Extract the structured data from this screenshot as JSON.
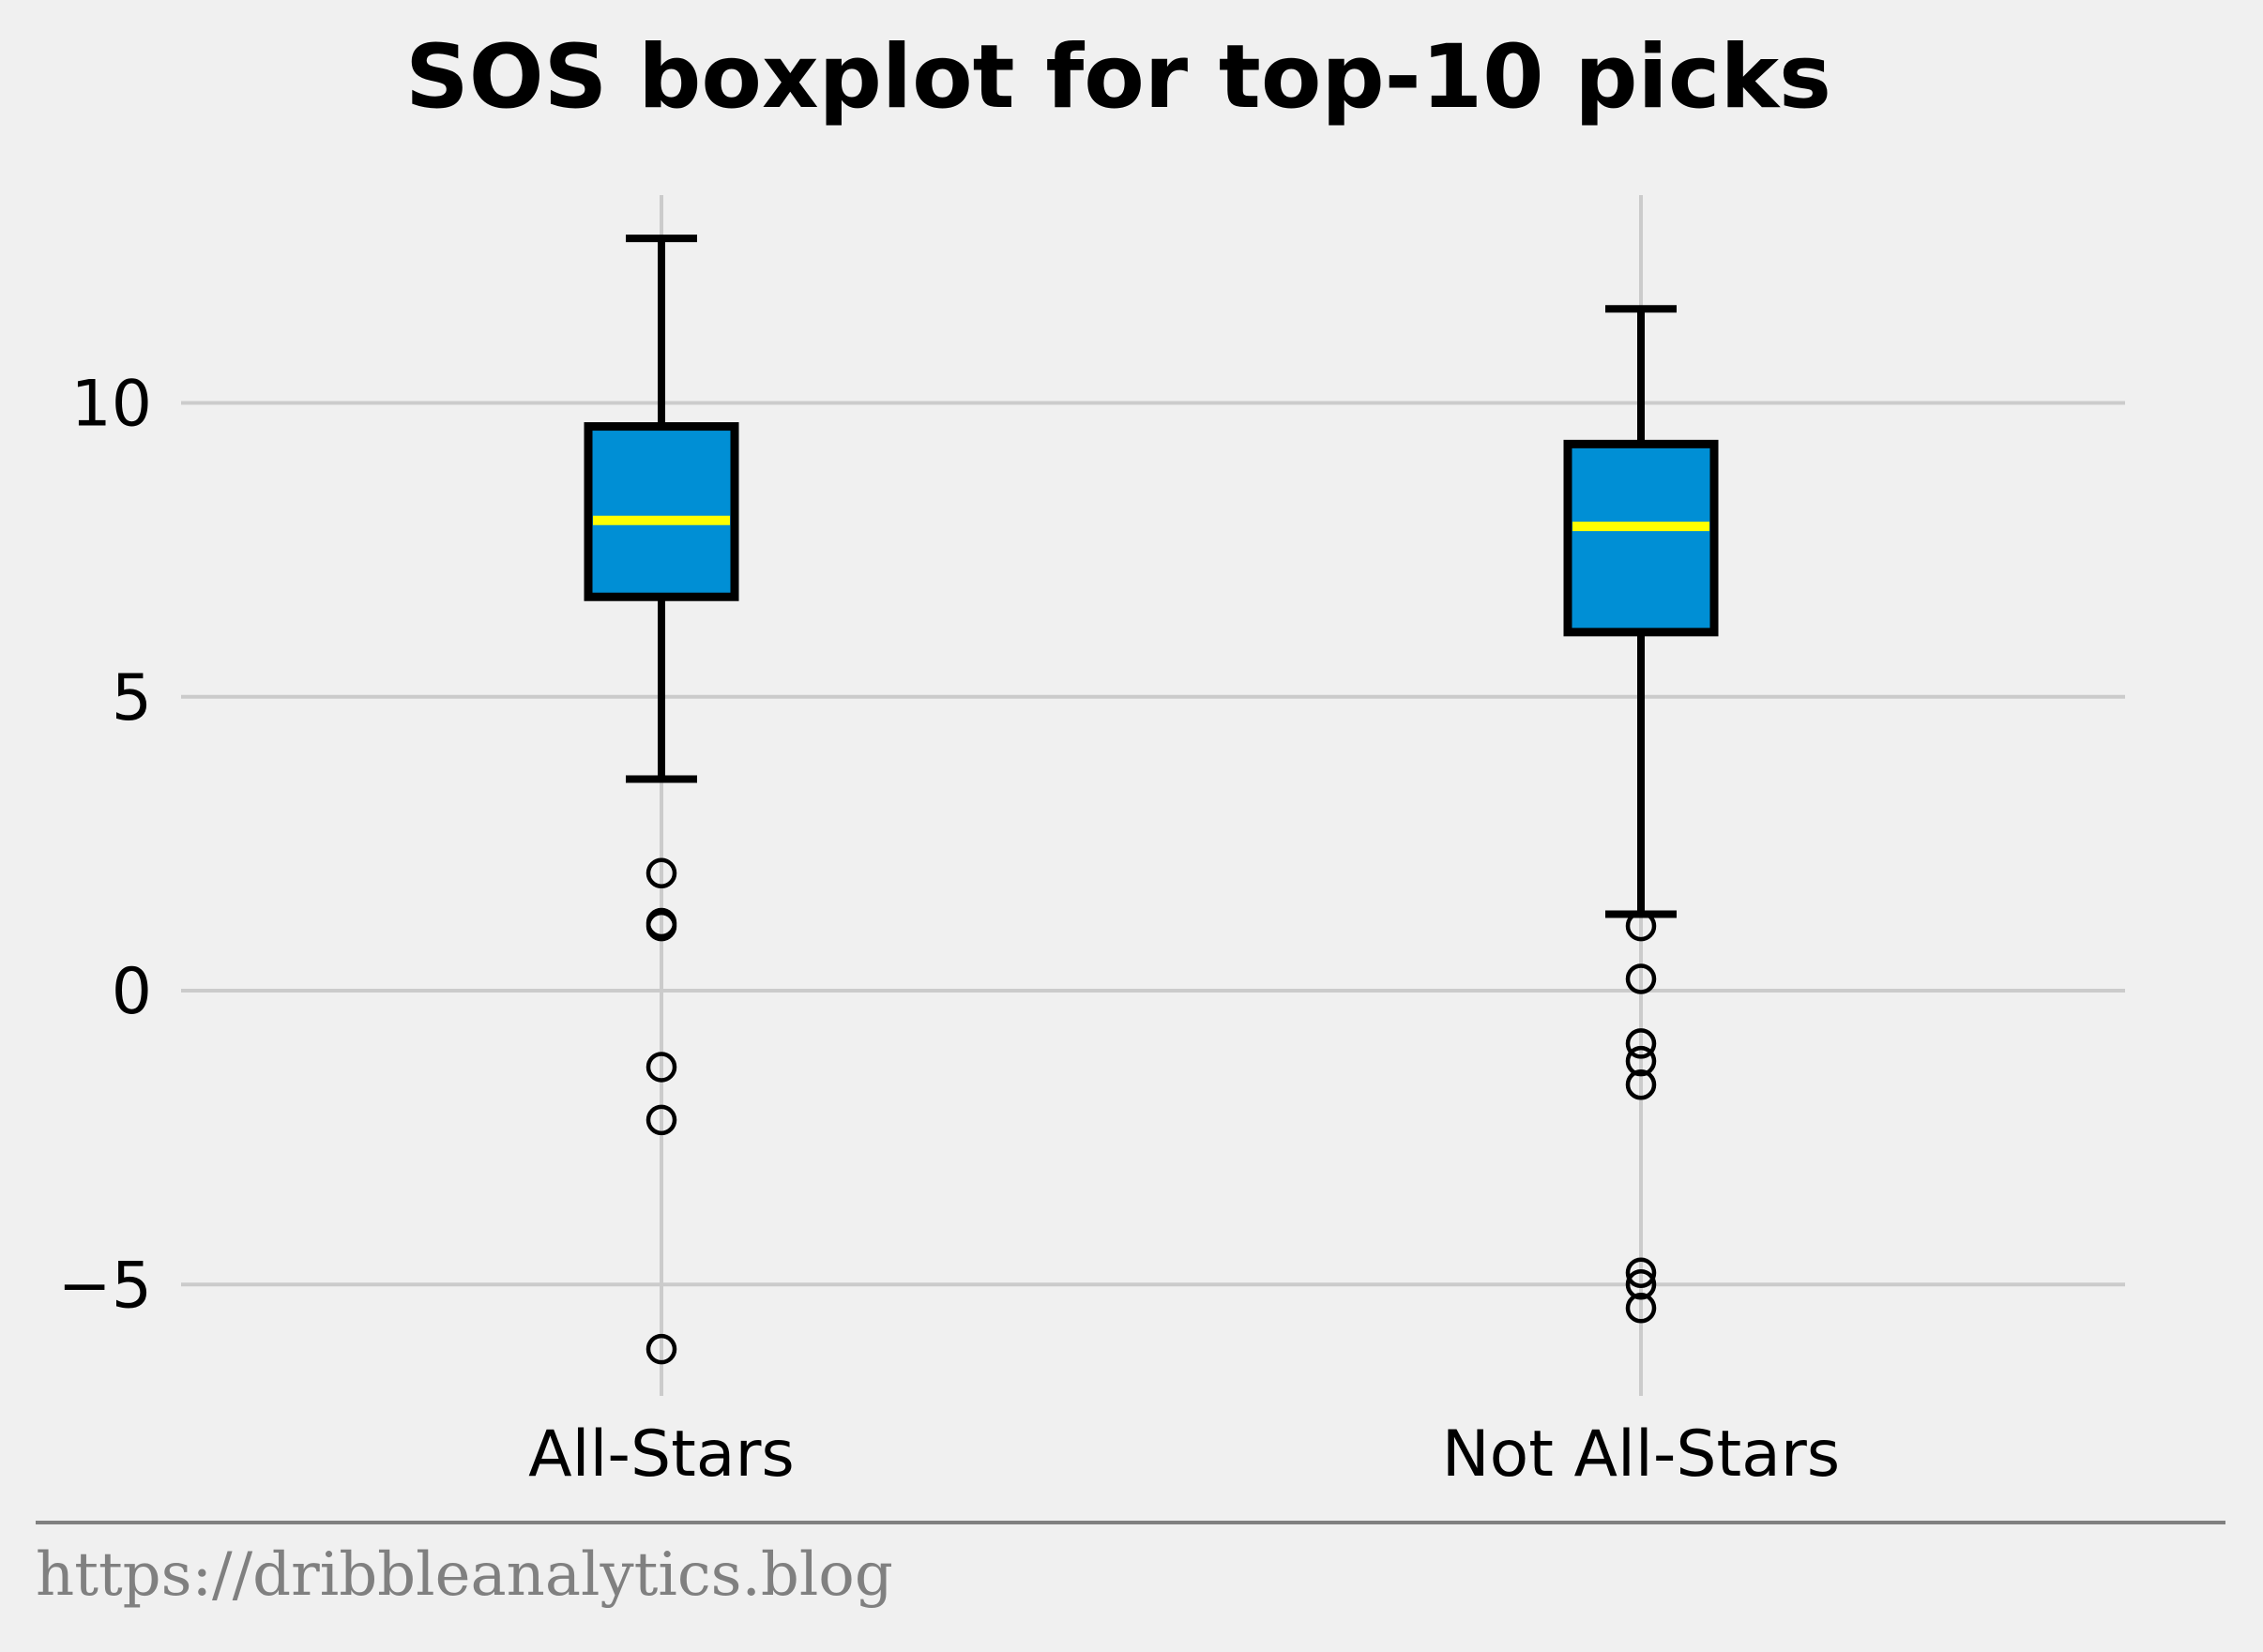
{
  "chart_data": {
    "type": "boxplot",
    "title": "SOS boxplot for top-10 picks",
    "xlabel": "",
    "ylabel": "",
    "ylim": [
      -6.9,
      13.6
    ],
    "yticks": [
      -5,
      0,
      5,
      10
    ],
    "ytick_labels": [
      "−5",
      "0",
      "5",
      "10"
    ],
    "grid": true,
    "categories": [
      "All-Stars",
      "Not All-Stars"
    ],
    "boxes": [
      {
        "label": "All-Stars",
        "whisker_low": 3.6,
        "q1": 6.7,
        "median": 8.0,
        "q3": 9.6,
        "whisker_high": 12.8,
        "outliers": [
          2.0,
          1.1,
          1.15,
          -1.3,
          -2.2,
          -6.1
        ]
      },
      {
        "label": "Not All-Stars",
        "whisker_low": 1.3,
        "q1": 6.1,
        "median": 7.9,
        "q3": 9.3,
        "whisker_high": 11.6,
        "outliers": [
          1.1,
          0.2,
          -0.9,
          -1.2,
          -1.6,
          -4.8,
          -5.0,
          -5.4
        ]
      }
    ],
    "colors": {
      "box_fill": "#008fd5",
      "median": "#ffff00",
      "edge": "#000000",
      "grid": "#cbcbcb",
      "background": "#f0f0f0"
    }
  },
  "footer": {
    "source": "https://dribbleanalytics.blog",
    "color": "#808080"
  }
}
